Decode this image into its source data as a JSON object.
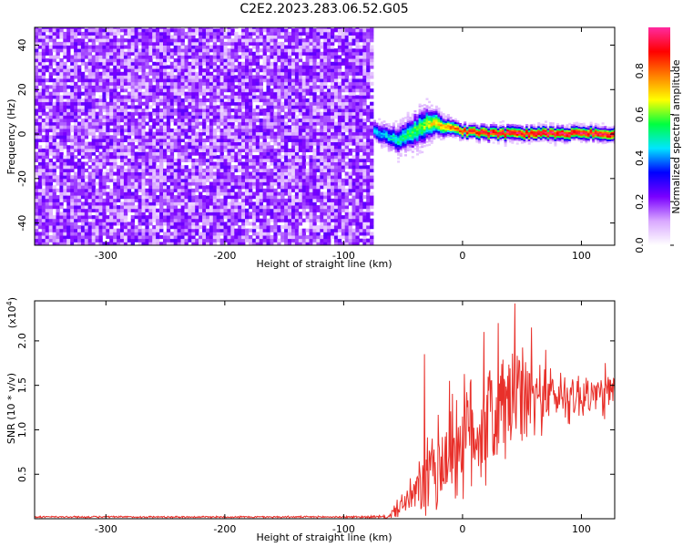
{
  "title": "C2E2.2023.283.06.52.G05",
  "colors": {
    "snr_line": "#e8302a",
    "spectrogram_base": "#7a10e0",
    "colorbar_stops": [
      "#ffffff",
      "#d9a8ff",
      "#7a00ff",
      "#0000ff",
      "#00e5ff",
      "#00ff40",
      "#ffff00",
      "#ff8000",
      "#ff0000",
      "#ff2aa0"
    ]
  },
  "chart_data": [
    {
      "type": "heatmap",
      "xlabel": "Height of straight line (km)",
      "ylabel": "Frequency (Hz)",
      "xlim": [
        -360,
        128
      ],
      "ylim": [
        -50,
        48
      ],
      "x_ticks": [
        -300,
        -200,
        -100,
        0,
        100
      ],
      "y_ticks": [
        -40,
        -20,
        0,
        20,
        40
      ],
      "colorbar": {
        "label": "Normalized spectral amplitude",
        "range": [
          0,
          1
        ],
        "ticks": [
          "0.0",
          "0.2",
          "0.4",
          "0.6",
          "0.8"
        ]
      },
      "noise_region": {
        "x_from": -360,
        "x_to": -75,
        "freq_from": -50,
        "freq_to": 48,
        "amplitude": 0.15
      },
      "signal_ridge": {
        "x": [
          -75,
          -65,
          -55,
          -45,
          -35,
          -25,
          -15,
          0,
          20,
          40,
          60,
          80,
          100,
          128
        ],
        "center_freq": [
          1,
          -1,
          -3,
          0,
          3,
          5,
          3,
          1,
          0,
          0,
          0,
          0,
          0,
          0
        ],
        "half_width": [
          4,
          5,
          6,
          7,
          8,
          6,
          4,
          3,
          3,
          3,
          3,
          3,
          3,
          3
        ],
        "peak_amplitude": [
          0.45,
          0.45,
          0.5,
          0.55,
          0.6,
          0.7,
          0.75,
          0.85,
          0.95,
          0.95,
          0.95,
          0.95,
          0.95,
          0.95
        ]
      }
    },
    {
      "type": "line",
      "xlabel": "Height of straight line (km)",
      "ylabel": "SNR (10 * v/v)",
      "y_multiplier": "(x10",
      "y_multiplier_exp": "4",
      "xlim": [
        -360,
        128
      ],
      "ylim": [
        0,
        2.45
      ],
      "x_ticks": [
        -300,
        -200,
        -100,
        0,
        100
      ],
      "y_ticks": [
        0.5,
        1.0,
        1.5,
        2.0
      ],
      "series": [
        {
          "values_note_free": true,
          "x": [
            -360,
            -100,
            -62,
            -55,
            -45,
            -35,
            -25,
            -15,
            -5,
            5,
            20,
            30,
            40,
            50,
            60,
            70,
            80,
            90,
            100,
            110,
            128
          ],
          "y_mean": [
            0.02,
            0.02,
            0.02,
            0.12,
            0.22,
            0.35,
            0.5,
            0.7,
            0.85,
            0.95,
            1.08,
            1.18,
            1.3,
            1.35,
            1.35,
            1.38,
            1.38,
            1.38,
            1.38,
            1.4,
            1.38
          ],
          "y_spread": [
            0.01,
            0.01,
            0.02,
            0.1,
            0.18,
            0.35,
            0.55,
            0.6,
            0.65,
            0.7,
            0.7,
            0.7,
            0.65,
            0.55,
            0.45,
            0.35,
            0.3,
            0.3,
            0.28,
            0.25,
            0.25
          ],
          "peaks": [
            [
              -32,
              1.85
            ],
            [
              -11,
              1.55
            ],
            [
              18,
              2.1
            ],
            [
              30,
              2.2
            ],
            [
              44,
              2.42
            ],
            [
              58,
              2.15
            ],
            [
              70,
              1.9
            ],
            [
              120,
              1.75
            ]
          ]
        }
      ]
    }
  ]
}
